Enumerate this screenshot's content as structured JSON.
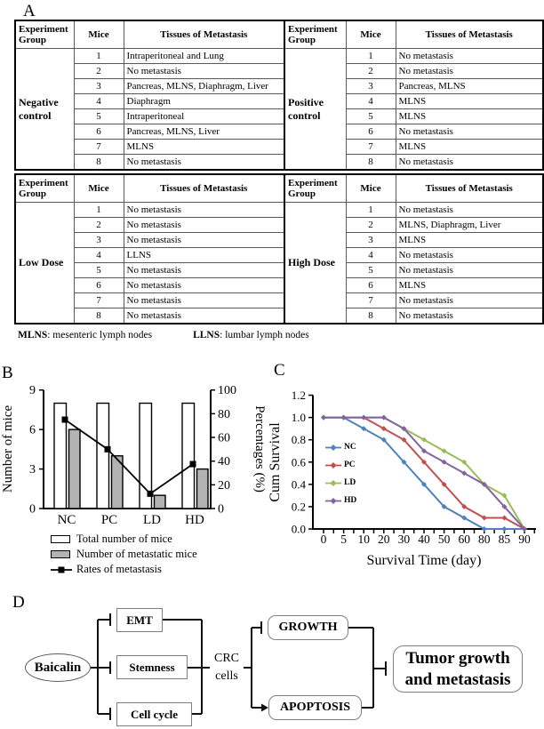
{
  "figure": {
    "panel_a_label": "A",
    "panel_b_label": "B",
    "panel_c_label": "C",
    "panel_d_label": "D"
  },
  "table_a": {
    "col_headers": {
      "group": "Experiment Group",
      "mice": "Mice",
      "tissues": "Tissues of Metastasis"
    },
    "blocks": [
      {
        "left": {
          "group": "Negative control",
          "rows": [
            [
              "1",
              "Intraperitoneal and Lung"
            ],
            [
              "2",
              "No metastasis"
            ],
            [
              "3",
              "Pancreas, MLNS, Diaphragm, Liver"
            ],
            [
              "4",
              "Diaphragm"
            ],
            [
              "5",
              "Intraperitoneal"
            ],
            [
              "6",
              "Pancreas, MLNS, Liver"
            ],
            [
              "7",
              "MLNS"
            ],
            [
              "8",
              "No metastasis"
            ]
          ]
        },
        "right": {
          "group": "Positive control",
          "rows": [
            [
              "1",
              "No metastasis"
            ],
            [
              "2",
              "No metastasis"
            ],
            [
              "3",
              "Pancreas, MLNS"
            ],
            [
              "4",
              "MLNS"
            ],
            [
              "5",
              "MLNS"
            ],
            [
              "6",
              "No metastasis"
            ],
            [
              "7",
              "MLNS"
            ],
            [
              "8",
              "No metastasis"
            ]
          ]
        }
      },
      {
        "left": {
          "group": "Low Dose",
          "rows": [
            [
              "1",
              "No metastasis"
            ],
            [
              "2",
              "No metastasis"
            ],
            [
              "3",
              "No metastasis"
            ],
            [
              "4",
              "LLNS"
            ],
            [
              "5",
              "No metastasis"
            ],
            [
              "6",
              "No metastasis"
            ],
            [
              "7",
              "No metastasis"
            ],
            [
              "8",
              "No metastasis"
            ]
          ]
        },
        "right": {
          "group": "High Dose",
          "rows": [
            [
              "1",
              "No metastasis"
            ],
            [
              "2",
              "MLNS, Diaphragm, Liver"
            ],
            [
              "3",
              "MLNS"
            ],
            [
              "4",
              "No metastasis"
            ],
            [
              "5",
              "No metastasis"
            ],
            [
              "6",
              "MLNS"
            ],
            [
              "7",
              "No metastasis"
            ],
            [
              "8",
              "No metastasis"
            ]
          ]
        }
      }
    ],
    "footnote": {
      "abbr1": "MLNS",
      "def1": ": mesenteric lymph nodes",
      "abbr2": "LLNS",
      "def2": ": lumbar lymph nodes"
    }
  },
  "chart_data": [
    {
      "panel": "B",
      "type": "bar",
      "categories": [
        "NC",
        "PC",
        "LD",
        "HD"
      ],
      "series": [
        {
          "name": "Total number of mice",
          "type": "bar",
          "fill": "#ffffff",
          "axis": "left",
          "values": [
            8,
            8,
            8,
            8
          ]
        },
        {
          "name": "Number of metastatic mice",
          "type": "bar",
          "fill": "#b3b3b3",
          "axis": "left",
          "values": [
            6,
            4,
            1,
            3
          ]
        },
        {
          "name": "Rates of metastasis",
          "type": "line",
          "color": "#000000",
          "axis": "right",
          "values": [
            75,
            50,
            12.5,
            37.5
          ]
        }
      ],
      "ylabel_left": "Number of mice",
      "ylim_left": [
        0,
        9
      ],
      "yticks_left": [
        0,
        3,
        6,
        9
      ],
      "ylabel_right": "Percentages (%)",
      "ylim_right": [
        0,
        100
      ],
      "yticks_right": [
        0,
        20,
        40,
        60,
        80,
        100
      ],
      "legend_position": "below",
      "grid": false
    },
    {
      "panel": "C",
      "type": "line",
      "x": [
        "0",
        "5",
        "10",
        "20",
        "30",
        "40",
        "50",
        "60",
        "80",
        "85",
        "90"
      ],
      "series": [
        {
          "name": "NC",
          "color": "#4F81BD",
          "values": [
            1.0,
            1.0,
            0.9,
            0.8,
            0.6,
            0.4,
            0.2,
            0.1,
            0.0,
            0.0,
            0.0
          ]
        },
        {
          "name": "PC",
          "color": "#C0504D",
          "values": [
            1.0,
            1.0,
            1.0,
            0.9,
            0.8,
            0.6,
            0.4,
            0.2,
            0.1,
            0.1,
            0.0
          ]
        },
        {
          "name": "LD",
          "color": "#9BBB59",
          "values": [
            1.0,
            1.0,
            1.0,
            1.0,
            0.9,
            0.8,
            0.7,
            0.6,
            0.4,
            0.3,
            0.0
          ]
        },
        {
          "name": "HD",
          "color": "#8064A2",
          "values": [
            1.0,
            1.0,
            1.0,
            1.0,
            0.9,
            0.7,
            0.6,
            0.5,
            0.4,
            0.2,
            0.0
          ]
        }
      ],
      "xlabel": "Survival Time (day)",
      "ylabel": "Cum Survival",
      "ylim": [
        0,
        1.2
      ],
      "yticks": [
        "0.0",
        "0.2",
        "0.4",
        "0.6",
        "0.8",
        "1.0",
        "1.2"
      ],
      "legend_position": "inside-left",
      "grid": false
    }
  ],
  "panel_d": {
    "source": "Baicalin",
    "targets": [
      "EMT",
      "Stemness",
      "Cell cycle"
    ],
    "mediator": "CRC cells",
    "growth": "GROWTH",
    "apoptosis": "APOPTOSIS",
    "outcome": "Tumor growth and metastasis"
  }
}
